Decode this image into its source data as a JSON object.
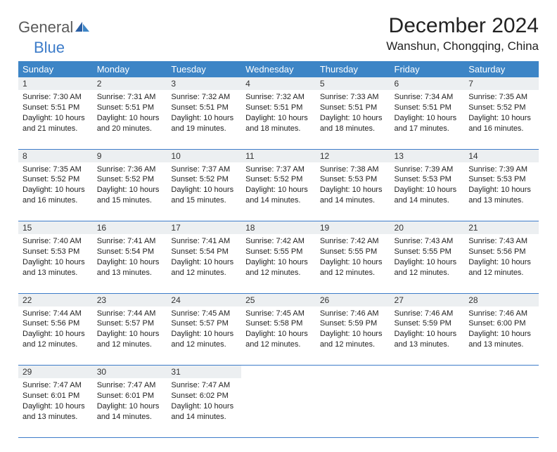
{
  "logo": {
    "word1": "General",
    "word2": "Blue"
  },
  "title": "December 2024",
  "location": "Wanshun, Chongqing, China",
  "colors": {
    "header_bg": "#3d85c6",
    "header_fg": "#ffffff",
    "daynum_bg": "#eceff1",
    "border": "#3d7cc9",
    "logo_gray": "#5a5a5a",
    "logo_blue": "#3d7cc9"
  },
  "day_headers": [
    "Sunday",
    "Monday",
    "Tuesday",
    "Wednesday",
    "Thursday",
    "Friday",
    "Saturday"
  ],
  "weeks": [
    [
      {
        "n": "1",
        "sr": "7:30 AM",
        "ss": "5:51 PM",
        "dl": "10 hours and 21 minutes."
      },
      {
        "n": "2",
        "sr": "7:31 AM",
        "ss": "5:51 PM",
        "dl": "10 hours and 20 minutes."
      },
      {
        "n": "3",
        "sr": "7:32 AM",
        "ss": "5:51 PM",
        "dl": "10 hours and 19 minutes."
      },
      {
        "n": "4",
        "sr": "7:32 AM",
        "ss": "5:51 PM",
        "dl": "10 hours and 18 minutes."
      },
      {
        "n": "5",
        "sr": "7:33 AM",
        "ss": "5:51 PM",
        "dl": "10 hours and 18 minutes."
      },
      {
        "n": "6",
        "sr": "7:34 AM",
        "ss": "5:51 PM",
        "dl": "10 hours and 17 minutes."
      },
      {
        "n": "7",
        "sr": "7:35 AM",
        "ss": "5:52 PM",
        "dl": "10 hours and 16 minutes."
      }
    ],
    [
      {
        "n": "8",
        "sr": "7:35 AM",
        "ss": "5:52 PM",
        "dl": "10 hours and 16 minutes."
      },
      {
        "n": "9",
        "sr": "7:36 AM",
        "ss": "5:52 PM",
        "dl": "10 hours and 15 minutes."
      },
      {
        "n": "10",
        "sr": "7:37 AM",
        "ss": "5:52 PM",
        "dl": "10 hours and 15 minutes."
      },
      {
        "n": "11",
        "sr": "7:37 AM",
        "ss": "5:52 PM",
        "dl": "10 hours and 14 minutes."
      },
      {
        "n": "12",
        "sr": "7:38 AM",
        "ss": "5:53 PM",
        "dl": "10 hours and 14 minutes."
      },
      {
        "n": "13",
        "sr": "7:39 AM",
        "ss": "5:53 PM",
        "dl": "10 hours and 14 minutes."
      },
      {
        "n": "14",
        "sr": "7:39 AM",
        "ss": "5:53 PM",
        "dl": "10 hours and 13 minutes."
      }
    ],
    [
      {
        "n": "15",
        "sr": "7:40 AM",
        "ss": "5:53 PM",
        "dl": "10 hours and 13 minutes."
      },
      {
        "n": "16",
        "sr": "7:41 AM",
        "ss": "5:54 PM",
        "dl": "10 hours and 13 minutes."
      },
      {
        "n": "17",
        "sr": "7:41 AM",
        "ss": "5:54 PM",
        "dl": "10 hours and 12 minutes."
      },
      {
        "n": "18",
        "sr": "7:42 AM",
        "ss": "5:55 PM",
        "dl": "10 hours and 12 minutes."
      },
      {
        "n": "19",
        "sr": "7:42 AM",
        "ss": "5:55 PM",
        "dl": "10 hours and 12 minutes."
      },
      {
        "n": "20",
        "sr": "7:43 AM",
        "ss": "5:55 PM",
        "dl": "10 hours and 12 minutes."
      },
      {
        "n": "21",
        "sr": "7:43 AM",
        "ss": "5:56 PM",
        "dl": "10 hours and 12 minutes."
      }
    ],
    [
      {
        "n": "22",
        "sr": "7:44 AM",
        "ss": "5:56 PM",
        "dl": "10 hours and 12 minutes."
      },
      {
        "n": "23",
        "sr": "7:44 AM",
        "ss": "5:57 PM",
        "dl": "10 hours and 12 minutes."
      },
      {
        "n": "24",
        "sr": "7:45 AM",
        "ss": "5:57 PM",
        "dl": "10 hours and 12 minutes."
      },
      {
        "n": "25",
        "sr": "7:45 AM",
        "ss": "5:58 PM",
        "dl": "10 hours and 12 minutes."
      },
      {
        "n": "26",
        "sr": "7:46 AM",
        "ss": "5:59 PM",
        "dl": "10 hours and 12 minutes."
      },
      {
        "n": "27",
        "sr": "7:46 AM",
        "ss": "5:59 PM",
        "dl": "10 hours and 13 minutes."
      },
      {
        "n": "28",
        "sr": "7:46 AM",
        "ss": "6:00 PM",
        "dl": "10 hours and 13 minutes."
      }
    ],
    [
      {
        "n": "29",
        "sr": "7:47 AM",
        "ss": "6:01 PM",
        "dl": "10 hours and 13 minutes."
      },
      {
        "n": "30",
        "sr": "7:47 AM",
        "ss": "6:01 PM",
        "dl": "10 hours and 14 minutes."
      },
      {
        "n": "31",
        "sr": "7:47 AM",
        "ss": "6:02 PM",
        "dl": "10 hours and 14 minutes."
      },
      null,
      null,
      null,
      null
    ]
  ],
  "labels": {
    "sunrise": "Sunrise:",
    "sunset": "Sunset:",
    "daylight": "Daylight:"
  }
}
